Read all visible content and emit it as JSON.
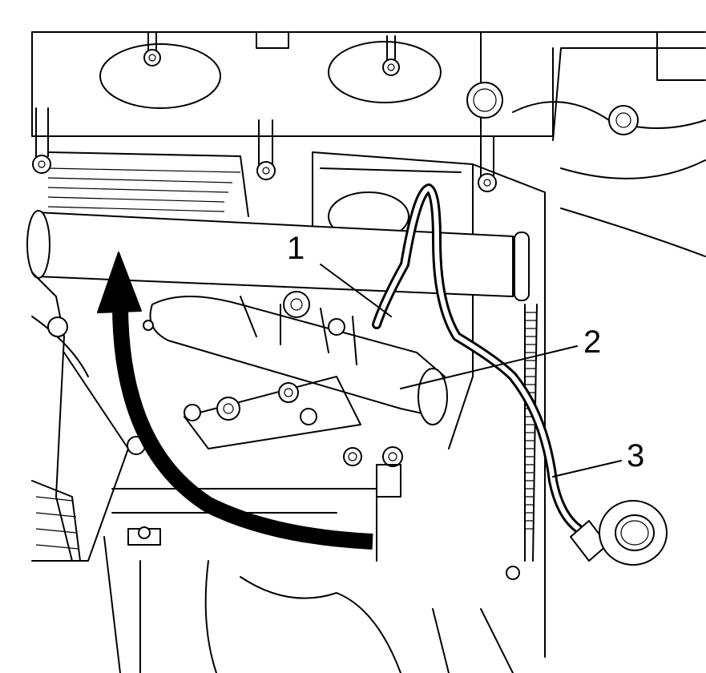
{
  "callouts": [
    {
      "id": "1",
      "label": "1"
    },
    {
      "id": "2",
      "label": "2"
    },
    {
      "id": "3",
      "label": "3"
    }
  ],
  "colors": {
    "line": "#000000",
    "background": "#ffffff"
  }
}
